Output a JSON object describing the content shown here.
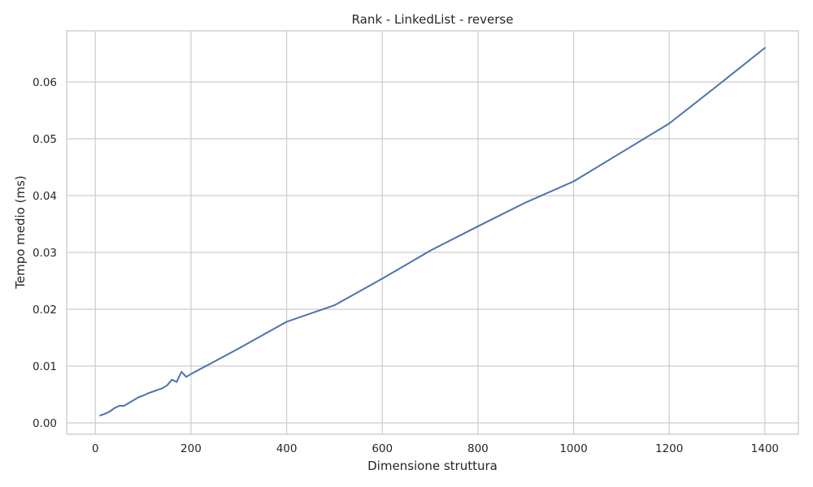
{
  "chart_data": {
    "type": "line",
    "title": "Rank - LinkedList - reverse",
    "xlabel": "Dimensione struttura",
    "ylabel": "Tempo medio (ms)",
    "xlim": [
      -60,
      1470
    ],
    "ylim": [
      -0.002,
      0.069
    ],
    "x_ticks": [
      0,
      200,
      400,
      600,
      800,
      1000,
      1200,
      1400
    ],
    "x_tick_labels": [
      "0",
      "200",
      "400",
      "600",
      "800",
      "1000",
      "1200",
      "1400"
    ],
    "y_ticks": [
      0.0,
      0.01,
      0.02,
      0.03,
      0.04,
      0.05,
      0.06
    ],
    "y_tick_labels": [
      "0.00",
      "0.01",
      "0.02",
      "0.03",
      "0.04",
      "0.05",
      "0.06"
    ],
    "grid": true,
    "series": [
      {
        "color": "#4c72b0",
        "x": [
          10,
          20,
          30,
          40,
          50,
          60,
          70,
          80,
          90,
          100,
          110,
          120,
          130,
          140,
          150,
          160,
          170,
          180,
          190,
          200,
          300,
          400,
          500,
          600,
          700,
          800,
          900,
          1000,
          1100,
          1200,
          1300,
          1400
        ],
        "y": [
          0.0013,
          0.0016,
          0.002,
          0.0026,
          0.003,
          0.003,
          0.0035,
          0.004,
          0.0045,
          0.0048,
          0.0052,
          0.0055,
          0.0058,
          0.0061,
          0.0066,
          0.0076,
          0.0072,
          0.009,
          0.0081,
          0.0086,
          0.0131,
          0.0178,
          0.0207,
          0.0254,
          0.0303,
          0.0346,
          0.0388,
          0.0425,
          0.0476,
          0.0527,
          0.0593,
          0.066
        ]
      }
    ]
  }
}
